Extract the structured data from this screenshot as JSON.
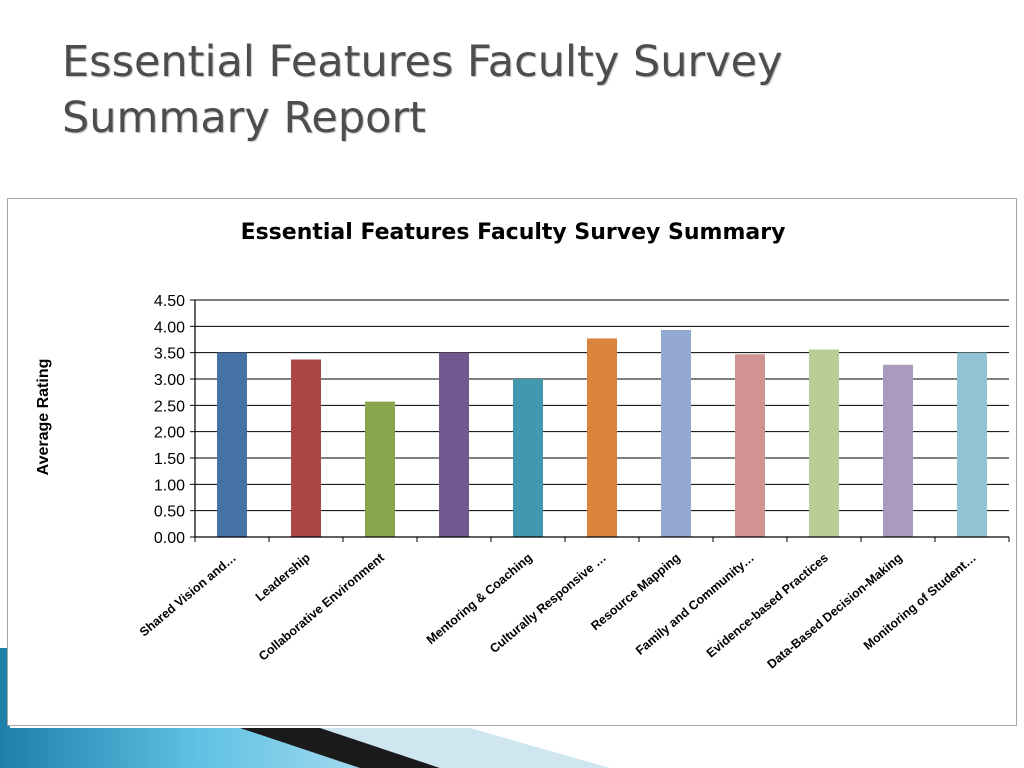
{
  "slide": {
    "title_line1": "Essential Features Faculty Survey",
    "title_line2": "Summary Report"
  },
  "chart_data": {
    "type": "bar",
    "title": "Essential Features Faculty Survey Summary",
    "xlabel": "",
    "ylabel": "Average Rating",
    "ylim": [
      0,
      4.5
    ],
    "yticks": [
      "0.00",
      "0.50",
      "1.00",
      "1.50",
      "2.00",
      "2.50",
      "3.00",
      "3.50",
      "4.00",
      "4.50"
    ],
    "grid": true,
    "legend": "none",
    "categories": [
      "Shared Vision and…",
      "Leadership",
      "Collaborative Environment",
      "",
      "Mentoring & Coaching",
      "Culturally Responsive …",
      "Resource Mapping",
      "Family and Community…",
      "Evidence-based  Practices",
      "Data-Based  Decision-Making",
      "Monitoring of Student…"
    ],
    "values": [
      3.5,
      3.37,
      2.57,
      3.5,
      3.0,
      3.77,
      3.93,
      3.47,
      3.56,
      3.27,
      3.5
    ],
    "colors": [
      "#4671a5",
      "#aa4643",
      "#89a54e",
      "#71588f",
      "#4198af",
      "#db843d",
      "#93a9cf",
      "#d19392",
      "#b9cd96",
      "#a99bbd",
      "#92c3d4"
    ]
  }
}
